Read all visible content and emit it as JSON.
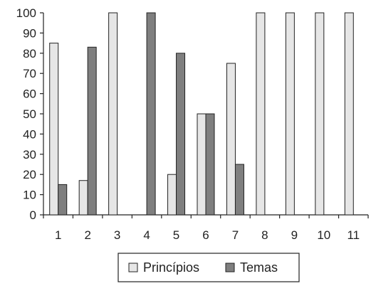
{
  "chart_data": {
    "type": "bar",
    "title": "",
    "xlabel": "",
    "ylabel": "",
    "categories": [
      "1",
      "2",
      "3",
      "4",
      "5",
      "6",
      "7",
      "8",
      "9",
      "10",
      "11"
    ],
    "ylim": [
      0,
      100
    ],
    "yticks": [
      "0",
      "10",
      "20",
      "30",
      "40",
      "50",
      "60",
      "70",
      "80",
      "90",
      "100"
    ],
    "grid": false,
    "legend_position": "bottom",
    "series": [
      {
        "name": "Princípios",
        "color": "#e6e6e6",
        "values": [
          85,
          17,
          100,
          0,
          20,
          50,
          75,
          100,
          100,
          100,
          100
        ]
      },
      {
        "name": "Temas",
        "color": "#7f7f7f",
        "values": [
          15,
          83,
          0,
          100,
          80,
          50,
          25,
          0,
          0,
          0,
          0
        ]
      }
    ]
  }
}
